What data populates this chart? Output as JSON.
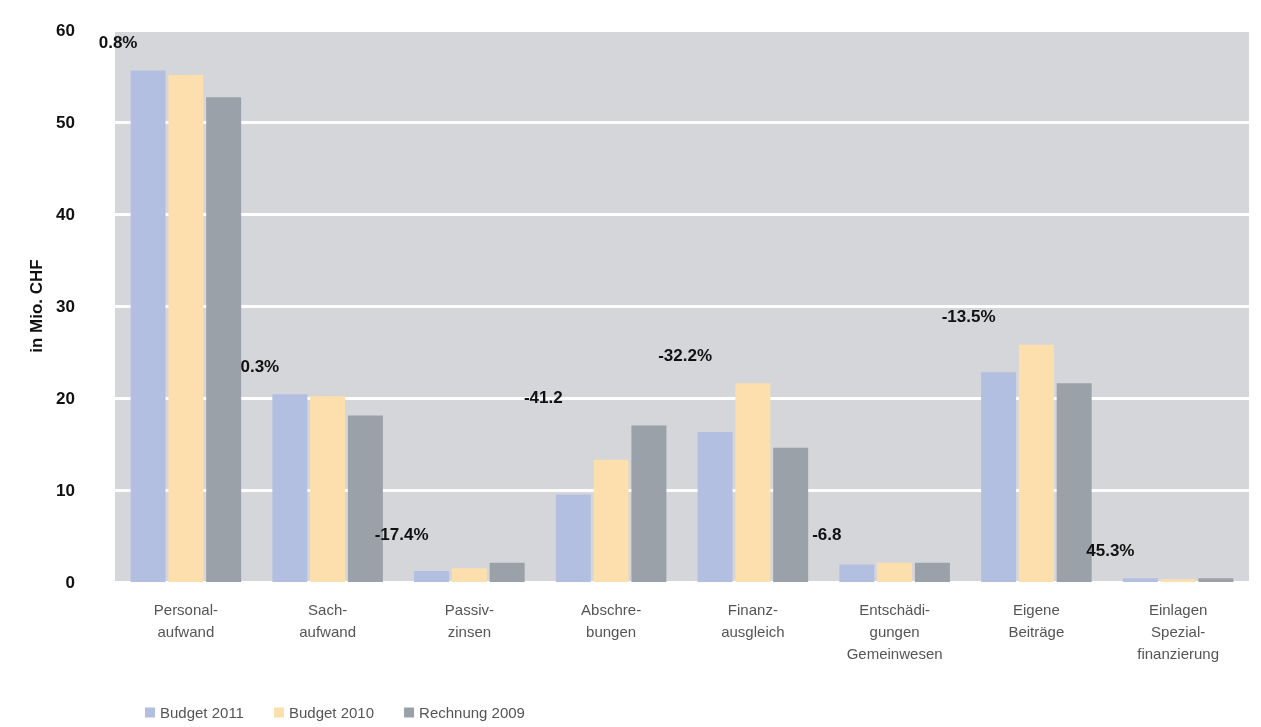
{
  "chart_data": {
    "type": "bar",
    "ylabel": "in Mio. CHF",
    "categories": [
      "Personal-\naufwand",
      "Sach-\naufwand",
      "Passiv-\nzinsen",
      "Abschre-\nbungen",
      "Finanz-\nausgleich",
      "Entschädi-\ngungen\nGemeinwesen",
      "Eigene\nBeiträge",
      "Einlagen\nSpezial-\nfinanzierung"
    ],
    "series": [
      {
        "name": "Budget 2011",
        "color": "#b3bfe0",
        "values": [
          55.6,
          20.4,
          1.2,
          9.5,
          16.3,
          1.9,
          22.8,
          0.4
        ]
      },
      {
        "name": "Budget 2010",
        "color": "#fddfae",
        "values": [
          55.1,
          20.2,
          1.5,
          13.3,
          21.6,
          2.1,
          25.8,
          0.3
        ]
      },
      {
        "name": "Rechnung 2009",
        "color": "#9ba1a9",
        "values": [
          52.7,
          18.1,
          2.1,
          17.0,
          14.6,
          2.1,
          21.6,
          0.4
        ]
      }
    ],
    "ylim": [
      0,
      60
    ],
    "yticks": [
      0,
      10,
      20,
      30,
      40,
      50,
      60
    ],
    "grid": "y",
    "legend": "bottom left",
    "annotations": [
      "0.8%",
      "0.3%",
      "-17.4%",
      "-41.2",
      "-32.2%",
      "-6.8",
      "-13.5%",
      "45.3%"
    ]
  }
}
